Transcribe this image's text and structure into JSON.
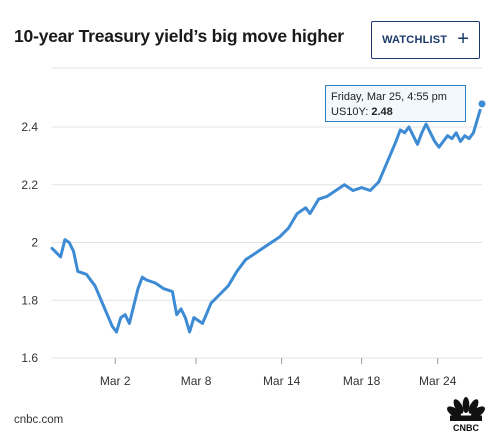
{
  "header": {
    "title": "10-year Treasury yield’s big move higher",
    "watchlist_label": "WATCHLIST",
    "watchlist_icon": "plus-icon"
  },
  "tooltip": {
    "date": "Friday, Mar 25, 4:55 pm",
    "series": "US10Y",
    "value_text": "2.48"
  },
  "footer": {
    "source": "cnbc.com",
    "logo": "cnbc-peacock-logo",
    "logo_text": "CNBC"
  },
  "colors": {
    "line": "#3d8bd4",
    "button": "#1b3a6b",
    "grid": "#e3e3e3"
  },
  "chart_data": {
    "type": "line",
    "title": "10-year Treasury yield’s big move higher",
    "xlabel": "",
    "ylabel": "",
    "series_name": "US10Y",
    "ylim": [
      1.6,
      2.55
    ],
    "yticks": [
      1.6,
      1.8,
      2,
      2.2,
      2.4
    ],
    "ytick_labels": [
      "1.6",
      "1.8",
      "2",
      "2.2",
      "2.4"
    ],
    "xtick_labels": [
      "Mar 2",
      "Mar 8",
      "Mar 14",
      "Mar 18",
      "Mar 24"
    ],
    "x_index_range": [
      0,
      100
    ],
    "xtick_positions": [
      14.7,
      33.5,
      53.4,
      72.0,
      89.7
    ],
    "grid": "horizontal",
    "x": [
      0,
      2,
      3,
      4,
      5,
      6,
      8,
      10,
      12,
      14,
      15,
      16,
      17,
      18,
      19,
      20,
      21,
      22,
      24,
      26,
      28,
      29,
      30,
      31,
      32,
      33,
      35,
      37,
      39,
      41,
      43,
      45,
      47,
      49,
      51,
      53,
      55,
      57,
      59,
      60,
      62,
      64,
      66,
      68,
      70,
      72,
      74,
      76,
      78,
      80,
      81,
      82,
      83,
      84,
      85,
      86,
      87,
      88,
      89,
      90,
      91,
      92,
      93,
      94,
      95,
      96,
      97,
      98,
      99,
      100
    ],
    "y": [
      1.98,
      1.95,
      2.01,
      2.0,
      1.97,
      1.9,
      1.89,
      1.85,
      1.78,
      1.71,
      1.69,
      1.74,
      1.75,
      1.72,
      1.78,
      1.84,
      1.88,
      1.87,
      1.86,
      1.84,
      1.83,
      1.75,
      1.77,
      1.74,
      1.69,
      1.74,
      1.72,
      1.79,
      1.82,
      1.85,
      1.9,
      1.94,
      1.96,
      1.98,
      2.0,
      2.02,
      2.05,
      2.1,
      2.12,
      2.1,
      2.15,
      2.16,
      2.18,
      2.2,
      2.18,
      2.19,
      2.18,
      2.21,
      2.28,
      2.35,
      2.39,
      2.38,
      2.4,
      2.37,
      2.34,
      2.38,
      2.41,
      2.38,
      2.35,
      2.33,
      2.35,
      2.37,
      2.36,
      2.38,
      2.35,
      2.37,
      2.36,
      2.38,
      2.43,
      2.48
    ]
  }
}
